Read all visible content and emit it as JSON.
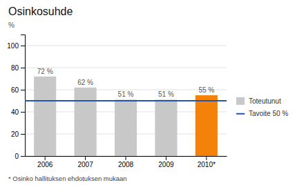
{
  "chart_data": {
    "type": "bar",
    "title": "Osinkosuhde",
    "ylabel": "%",
    "categories": [
      "2006",
      "2007",
      "2008",
      "2009",
      "2010*"
    ],
    "series": [
      {
        "name": "Toteutunut",
        "color": "#c8c8c8",
        "colors": [
          "#c8c8c8",
          "#c8c8c8",
          "#c8c8c8",
          "#c8c8c8",
          "#f4820a"
        ],
        "values": [
          72,
          62,
          51,
          51,
          55
        ],
        "value_labels": [
          "72 %",
          "62 %",
          "51 %",
          "51 %",
          "55 %"
        ]
      }
    ],
    "target_line": {
      "name": "Tavoite 50 %",
      "value": 50,
      "color": "#2255aa"
    },
    "ylim": [
      0,
      110
    ],
    "yticks": [
      0,
      20,
      40,
      60,
      80,
      100
    ],
    "grid": true,
    "data_labels": true,
    "legend": "right",
    "annotations": [
      "* Osinko hallituksen ehdotuksen mukaan"
    ]
  }
}
